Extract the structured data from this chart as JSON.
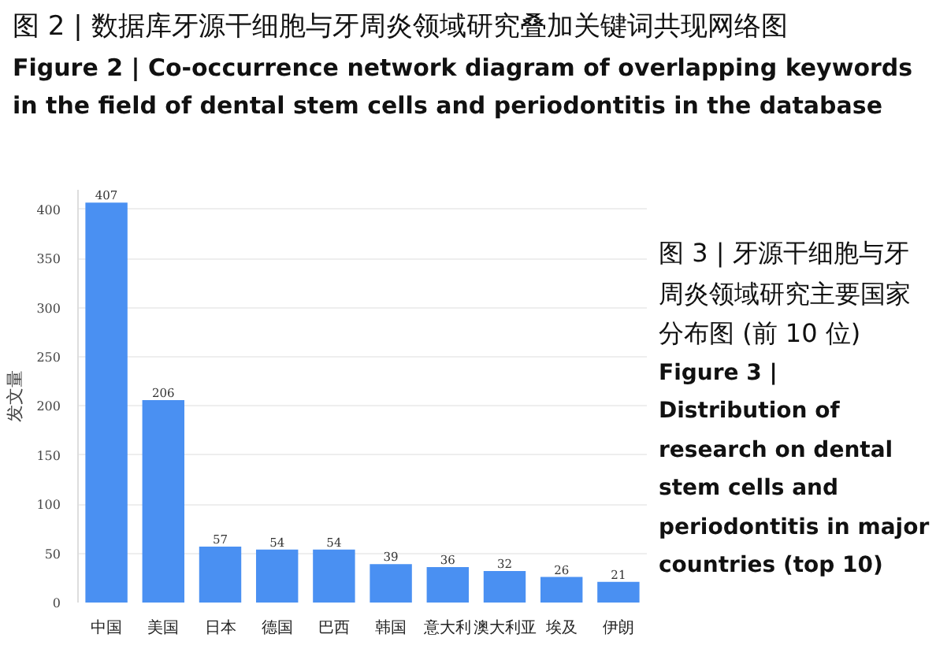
{
  "chart_data": {
    "type": "bar",
    "title": "图 3 | 牙源干细胞与牙周炎领域研究主要国家分布图 (前 10 位)",
    "subtitle": "Figure 3 | Distribution of research on dental stem cells and periodontitis in major countries (top 10)",
    "annotations": [
      "图 2 | 数据库牙源干细胞与牙周炎领域研究叠加关键词共现网络图",
      "Figure 2 | Co-occurrence network diagram of overlapping keywords in the field of dental stem cells and periodontitis in the database"
    ],
    "ylabel": "发文量",
    "categories": [
      "中国",
      "美国",
      "日本",
      "德国",
      "巴西",
      "韩国",
      "意大利",
      "澳大利亚",
      "埃及",
      "伊朗"
    ],
    "values": [
      407,
      206,
      57,
      54,
      54,
      39,
      36,
      32,
      26,
      21
    ],
    "color": "#4a90f2",
    "ylim": [
      0,
      420
    ],
    "yticks": [
      0,
      50,
      100,
      150,
      200,
      250,
      300,
      350,
      400
    ],
    "grid": "y",
    "data_labels": true
  }
}
